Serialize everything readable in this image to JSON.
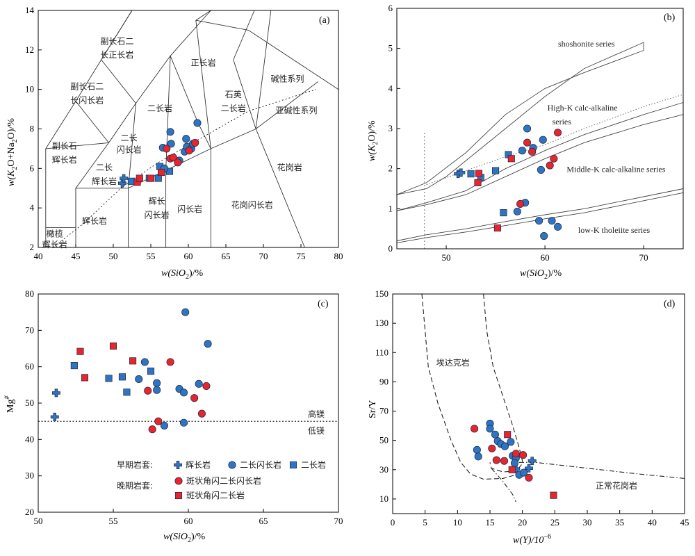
{
  "colors": {
    "blue": "#2f74c0",
    "red": "#e8242c",
    "outline": "#1a2a4a"
  },
  "chart_data": [
    {
      "id": "a",
      "type": "scatter",
      "panel_label": "(a)",
      "xlabel_parts": [
        "w(SiO",
        "2",
        ")/%"
      ],
      "ylabel_parts": [
        "w(K",
        "2",
        "O+Na",
        "2",
        "O)/%"
      ],
      "xlim": [
        40,
        80
      ],
      "ylim": [
        2,
        14
      ],
      "xticks": [
        40,
        45,
        50,
        55,
        60,
        65,
        70,
        75,
        80
      ],
      "yticks": [
        2,
        4,
        6,
        8,
        10,
        12,
        14
      ],
      "zones": [
        {
          "text": "副长石二",
          "x": 50.5,
          "y": 12.3
        },
        {
          "text": "长正长岩",
          "x": 50.5,
          "y": 11.6
        },
        {
          "text": "正长岩",
          "x": 62,
          "y": 11.2
        },
        {
          "text": "副长石二",
          "x": 46.5,
          "y": 10
        },
        {
          "text": "长闪长岩",
          "x": 46.5,
          "y": 9.3
        },
        {
          "text": "二长岩",
          "x": 56.2,
          "y": 8.9
        },
        {
          "text": "石英",
          "x": 66,
          "y": 9.6
        },
        {
          "text": "二长岩",
          "x": 66,
          "y": 8.9
        },
        {
          "text": "碱性系列",
          "x": 73.2,
          "y": 10.4
        },
        {
          "text": "亚碱性系列",
          "x": 74.4,
          "y": 8.8
        },
        {
          "text": "二长",
          "x": 52.1,
          "y": 7.4
        },
        {
          "text": "闪长岩",
          "x": 52.1,
          "y": 6.8
        },
        {
          "text": "副长石",
          "x": 43.5,
          "y": 7
        },
        {
          "text": "辉长岩",
          "x": 43.5,
          "y": 6.3
        },
        {
          "text": "二长",
          "x": 48.8,
          "y": 5.9
        },
        {
          "text": "辉长岩",
          "x": 48.8,
          "y": 5.2
        },
        {
          "text": "花岗岩",
          "x": 73.5,
          "y": 5.9
        },
        {
          "text": "辉长",
          "x": 55.8,
          "y": 4.2
        },
        {
          "text": "闪长岩",
          "x": 55.8,
          "y": 3.5
        },
        {
          "text": "闪长岩",
          "x": 60.2,
          "y": 3.8
        },
        {
          "text": "花岗闪长岩",
          "x": 68.5,
          "y": 4.0
        },
        {
          "text": "辉长岩",
          "x": 47.5,
          "y": 3.2
        },
        {
          "text": "橄榄",
          "x": 42.2,
          "y": 2.55
        },
        {
          "text": "辉长岩",
          "x": 42.2,
          "y": 2.0
        }
      ],
      "points": [
        {
          "g": "cross",
          "x": 51.2,
          "y": 5.25
        },
        {
          "g": "cross",
          "x": 51.4,
          "y": 5.5
        },
        {
          "g": "square",
          "x": 52.4,
          "y": 5.35
        },
        {
          "g": "square",
          "x": 54.8,
          "y": 5.5
        },
        {
          "g": "square",
          "x": 56.0,
          "y": 5.5
        },
        {
          "g": "square",
          "x": 57.5,
          "y": 5.85
        },
        {
          "g": "square",
          "x": 56.2,
          "y": 6.1
        },
        {
          "g": "circle",
          "x": 56.8,
          "y": 6.0
        },
        {
          "g": "circle",
          "x": 56.6,
          "y": 7.05
        },
        {
          "g": "circle",
          "x": 57.6,
          "y": 7.85
        },
        {
          "g": "circle",
          "x": 57.7,
          "y": 7.25
        },
        {
          "g": "circle",
          "x": 58.8,
          "y": 6.4
        },
        {
          "g": "circle",
          "x": 59.5,
          "y": 6.85
        },
        {
          "g": "circle",
          "x": 59.8,
          "y": 7.1
        },
        {
          "g": "circle",
          "x": 59.7,
          "y": 7.5
        },
        {
          "g": "circle",
          "x": 60.4,
          "y": 7.0
        },
        {
          "g": "circle",
          "x": 60.6,
          "y": 7.25
        },
        {
          "g": "circle",
          "x": 61.2,
          "y": 8.3
        },
        {
          "g": "rcircle",
          "x": 57.1,
          "y": 7.0
        },
        {
          "g": "rcircle",
          "x": 57.6,
          "y": 6.5
        },
        {
          "g": "rcircle",
          "x": 58.0,
          "y": 6.55
        },
        {
          "g": "rcircle",
          "x": 58.6,
          "y": 6.3
        },
        {
          "g": "rcircle",
          "x": 60.1,
          "y": 6.9
        },
        {
          "g": "rcircle",
          "x": 60.9,
          "y": 7.3
        },
        {
          "g": "rsquare",
          "x": 53.2,
          "y": 5.3
        },
        {
          "g": "rsquare",
          "x": 53.5,
          "y": 5.5
        },
        {
          "g": "rsquare",
          "x": 55.0,
          "y": 5.5
        },
        {
          "g": "rsquare",
          "x": 56.4,
          "y": 5.8
        }
      ]
    },
    {
      "id": "b",
      "type": "scatter",
      "panel_label": "(b)",
      "xlabel_parts": [
        "w(SiO",
        "2",
        ")/%"
      ],
      "ylabel_parts": [
        "w(K",
        "2",
        "O)/%"
      ],
      "xlim": [
        45,
        74
      ],
      "ylim": [
        0,
        6
      ],
      "xticks": [
        50,
        60,
        70
      ],
      "yticks": [
        0,
        1,
        2,
        3,
        4,
        5,
        6
      ],
      "zones": [
        {
          "text": "shoshonite series",
          "x": 64.2,
          "y": 5.05
        },
        {
          "text": "High-K calc-alkaline",
          "x": 63.8,
          "y": 3.45
        },
        {
          "text": "series",
          "x": 61.7,
          "y": 3.1
        },
        {
          "text": "Middle-K calc-alkaline series",
          "x": 67.2,
          "y": 1.92
        },
        {
          "text": "low-K tholeiite series",
          "x": 67.0,
          "y": 0.4
        }
      ],
      "points": [
        {
          "g": "cross",
          "x": 51.2,
          "y": 1.87
        },
        {
          "g": "cross",
          "x": 51.5,
          "y": 1.9
        },
        {
          "g": "square",
          "x": 52.5,
          "y": 1.87
        },
        {
          "g": "square",
          "x": 53.5,
          "y": 1.78
        },
        {
          "g": "square",
          "x": 55.0,
          "y": 1.95
        },
        {
          "g": "square",
          "x": 56.3,
          "y": 2.35
        },
        {
          "g": "square",
          "x": 55.8,
          "y": 0.9
        },
        {
          "g": "circle",
          "x": 57.2,
          "y": 0.93
        },
        {
          "g": "circle",
          "x": 58.0,
          "y": 1.15
        },
        {
          "g": "circle",
          "x": 57.7,
          "y": 2.45
        },
        {
          "g": "circle",
          "x": 58.2,
          "y": 3.0
        },
        {
          "g": "circle",
          "x": 58.8,
          "y": 2.52
        },
        {
          "g": "circle",
          "x": 59.8,
          "y": 2.72
        },
        {
          "g": "circle",
          "x": 59.6,
          "y": 1.97
        },
        {
          "g": "circle",
          "x": 59.4,
          "y": 0.7
        },
        {
          "g": "circle",
          "x": 59.9,
          "y": 0.32
        },
        {
          "g": "circle",
          "x": 60.7,
          "y": 0.7
        },
        {
          "g": "circle",
          "x": 61.3,
          "y": 0.55
        },
        {
          "g": "rcircle",
          "x": 57.5,
          "y": 1.12
        },
        {
          "g": "rcircle",
          "x": 58.2,
          "y": 2.65
        },
        {
          "g": "rcircle",
          "x": 58.7,
          "y": 2.42
        },
        {
          "g": "rcircle",
          "x": 60.5,
          "y": 2.08
        },
        {
          "g": "rcircle",
          "x": 60.9,
          "y": 2.25
        },
        {
          "g": "rcircle",
          "x": 61.3,
          "y": 2.9
        },
        {
          "g": "rsquare",
          "x": 53.3,
          "y": 1.88
        },
        {
          "g": "rsquare",
          "x": 53.2,
          "y": 1.65
        },
        {
          "g": "rsquare",
          "x": 56.6,
          "y": 2.25
        },
        {
          "g": "rsquare",
          "x": 55.2,
          "y": 0.52
        }
      ]
    },
    {
      "id": "c",
      "type": "scatter",
      "panel_label": "(c)",
      "xlabel_parts": [
        "w(SiO",
        "2",
        ")/%"
      ],
      "ylabel_parts": [
        "Mg",
        "#"
      ],
      "xlim": [
        50,
        70
      ],
      "ylim": [
        20,
        80
      ],
      "xticks": [
        50,
        55,
        60,
        65,
        70
      ],
      "yticks": [
        20,
        30,
        40,
        50,
        60,
        70,
        80
      ],
      "threshold": {
        "y": 45,
        "above": "高镁",
        "below": "低镁"
      },
      "legend": {
        "early_title": "早期岩套:",
        "late_title": "晚期岩套:",
        "items": [
          {
            "g": "cross",
            "label": "辉长岩"
          },
          {
            "g": "circle",
            "label": "二长闪长岩"
          },
          {
            "g": "square",
            "label": "二长岩"
          },
          {
            "g": "rcircle",
            "label": "斑状角闪二长闪长岩"
          },
          {
            "g": "rsquare",
            "label": "斑状角闪二长岩"
          }
        ]
      },
      "points": [
        {
          "g": "cross",
          "x": 51.2,
          "y": 52.8
        },
        {
          "g": "cross",
          "x": 51.1,
          "y": 46.2
        },
        {
          "g": "square",
          "x": 52.4,
          "y": 60.3
        },
        {
          "g": "square",
          "x": 54.7,
          "y": 56.8
        },
        {
          "g": "square",
          "x": 55.6,
          "y": 57.2
        },
        {
          "g": "square",
          "x": 55.9,
          "y": 53.0
        },
        {
          "g": "square",
          "x": 57.5,
          "y": 58.8
        },
        {
          "g": "circle",
          "x": 57.1,
          "y": 61.3
        },
        {
          "g": "circle",
          "x": 56.7,
          "y": 56.6
        },
        {
          "g": "circle",
          "x": 57.9,
          "y": 55.5
        },
        {
          "g": "circle",
          "x": 57.9,
          "y": 53.6
        },
        {
          "g": "circle",
          "x": 59.4,
          "y": 53.9
        },
        {
          "g": "circle",
          "x": 59.7,
          "y": 52.9
        },
        {
          "g": "circle",
          "x": 59.8,
          "y": 75.0
        },
        {
          "g": "circle",
          "x": 60.7,
          "y": 55.3
        },
        {
          "g": "circle",
          "x": 61.3,
          "y": 66.3
        },
        {
          "g": "circle",
          "x": 58.4,
          "y": 43.8
        },
        {
          "g": "circle",
          "x": 59.7,
          "y": 44.6
        },
        {
          "g": "rcircle",
          "x": 57.3,
          "y": 53.4
        },
        {
          "g": "rcircle",
          "x": 58.8,
          "y": 61.3
        },
        {
          "g": "rcircle",
          "x": 60.4,
          "y": 51.4
        },
        {
          "g": "rcircle",
          "x": 61.2,
          "y": 54.7
        },
        {
          "g": "rcircle",
          "x": 60.9,
          "y": 47.1
        },
        {
          "g": "rcircle",
          "x": 58.0,
          "y": 45.0
        },
        {
          "g": "rcircle",
          "x": 57.6,
          "y": 42.8
        },
        {
          "g": "rsquare",
          "x": 52.8,
          "y": 64.2
        },
        {
          "g": "rsquare",
          "x": 53.1,
          "y": 57.0
        },
        {
          "g": "rsquare",
          "x": 55.0,
          "y": 65.7
        },
        {
          "g": "rsquare",
          "x": 56.3,
          "y": 61.6
        }
      ]
    },
    {
      "id": "d",
      "type": "scatter",
      "panel_label": "(d)",
      "xlabel_parts": [
        "w(Y)/10",
        "−6"
      ],
      "ylabel_parts": [
        "Sr/Y"
      ],
      "xlim": [
        0,
        45
      ],
      "ylim": [
        0,
        150
      ],
      "xticks": [
        0,
        5,
        10,
        15,
        20,
        25,
        30,
        35,
        40,
        45
      ],
      "yticks": [
        10,
        30,
        50,
        70,
        90,
        110,
        130,
        150
      ],
      "zones": [
        {
          "text": "埃达克岩",
          "x": 9.3,
          "y": 101
        },
        {
          "text": "正常花岗岩",
          "x": 34.5,
          "y": 17
        }
      ],
      "points": [
        {
          "g": "cross",
          "x": 19.0,
          "y": 30.5
        },
        {
          "g": "cross",
          "x": 21.0,
          "y": 31.0
        },
        {
          "g": "cross",
          "x": 21.5,
          "y": 36.0
        },
        {
          "g": "circle",
          "x": 13.0,
          "y": 43.5
        },
        {
          "g": "circle",
          "x": 13.2,
          "y": 39.0
        },
        {
          "g": "circle",
          "x": 15.0,
          "y": 61.5
        },
        {
          "g": "circle",
          "x": 15.0,
          "y": 58.0
        },
        {
          "g": "circle",
          "x": 15.8,
          "y": 54.0
        },
        {
          "g": "circle",
          "x": 16.2,
          "y": 49.5
        },
        {
          "g": "circle",
          "x": 16.7,
          "y": 47.5
        },
        {
          "g": "circle",
          "x": 17.3,
          "y": 46.0
        },
        {
          "g": "circle",
          "x": 18.2,
          "y": 49.0
        },
        {
          "g": "circle",
          "x": 18.5,
          "y": 39.5
        },
        {
          "g": "circle",
          "x": 19.0,
          "y": 38.0
        },
        {
          "g": "circle",
          "x": 18.8,
          "y": 34.5
        },
        {
          "g": "circle",
          "x": 19.5,
          "y": 26.5
        },
        {
          "g": "circle",
          "x": 20.2,
          "y": 28.0
        },
        {
          "g": "rcircle",
          "x": 12.6,
          "y": 58.0
        },
        {
          "g": "rcircle",
          "x": 15.3,
          "y": 44.5
        },
        {
          "g": "rcircle",
          "x": 16.0,
          "y": 36.5
        },
        {
          "g": "rcircle",
          "x": 17.2,
          "y": 36.0
        },
        {
          "g": "rcircle",
          "x": 19.0,
          "y": 41.0
        },
        {
          "g": "rcircle",
          "x": 20.1,
          "y": 40.0
        },
        {
          "g": "rcircle",
          "x": 21.0,
          "y": 24.5
        },
        {
          "g": "rsquare",
          "x": 17.7,
          "y": 54.0
        },
        {
          "g": "rsquare",
          "x": 18.4,
          "y": 30.0
        },
        {
          "g": "rsquare",
          "x": 24.8,
          "y": 12.5
        }
      ]
    }
  ]
}
